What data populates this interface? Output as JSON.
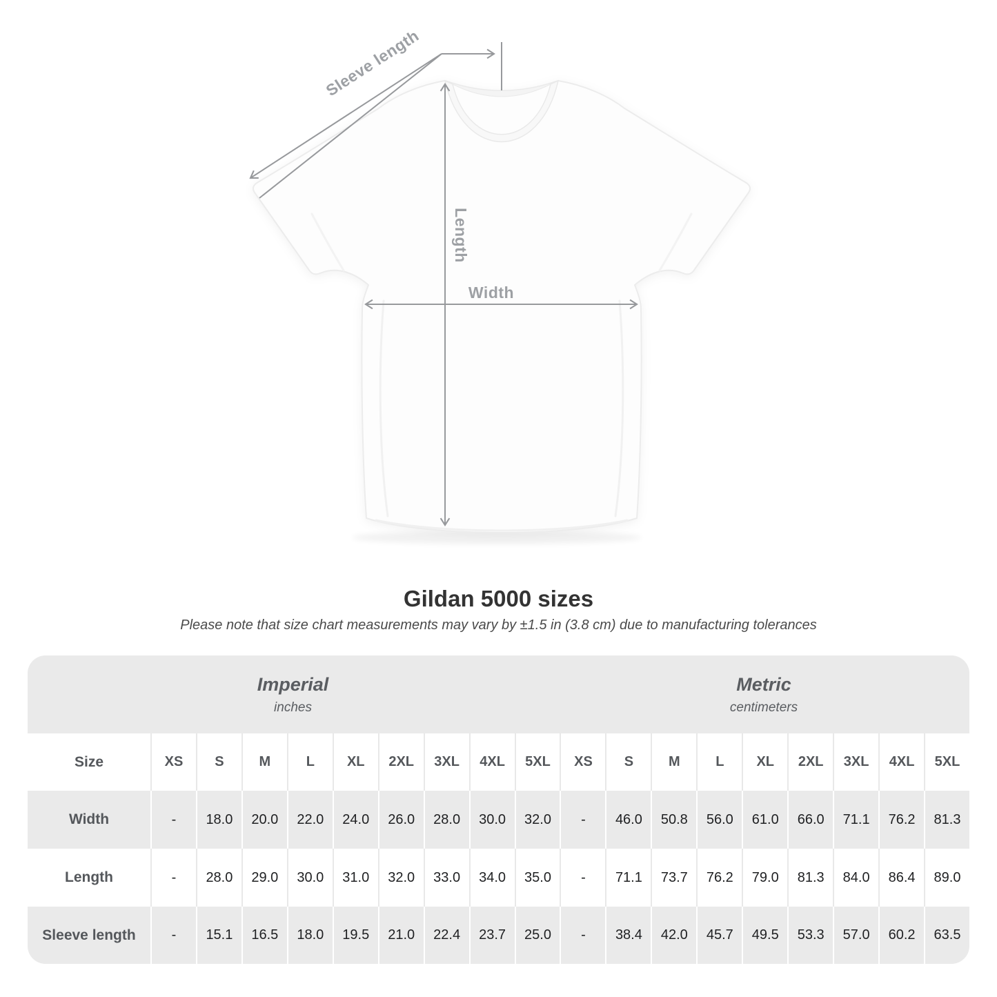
{
  "title": "Gildan 5000 sizes",
  "note": "Please note that size chart measurements may vary by ±1.5 in (3.8 cm) due to manufacturing tolerances",
  "figure": {
    "labels": {
      "sleeve": "Sleeve length",
      "length": "Length",
      "width": "Width"
    }
  },
  "colors": {
    "measurement_line": "#97999c",
    "measurement_label": "#9da0a4",
    "table_band_bg": "#eaeaea",
    "table_header_text": "#54575b",
    "table_value_text": "#1f2022",
    "title_text": "#333333"
  },
  "chart_data": {
    "type": "table",
    "title": "Gildan 5000 sizes",
    "size_header": "Size",
    "sizes": [
      "XS",
      "S",
      "M",
      "L",
      "XL",
      "2XL",
      "3XL",
      "4XL",
      "5XL"
    ],
    "unit_groups": [
      {
        "label": "Imperial",
        "unit": "inches"
      },
      {
        "label": "Metric",
        "unit": "centimeters"
      }
    ],
    "rows": [
      {
        "label": "Width",
        "imperial": [
          "-",
          "18.0",
          "20.0",
          "22.0",
          "24.0",
          "26.0",
          "28.0",
          "30.0",
          "32.0"
        ],
        "metric": [
          "-",
          "46.0",
          "50.8",
          "56.0",
          "61.0",
          "66.0",
          "71.1",
          "76.2",
          "81.3"
        ]
      },
      {
        "label": "Length",
        "imperial": [
          "-",
          "28.0",
          "29.0",
          "30.0",
          "31.0",
          "32.0",
          "33.0",
          "34.0",
          "35.0"
        ],
        "metric": [
          "-",
          "71.1",
          "73.7",
          "76.2",
          "79.0",
          "81.3",
          "84.0",
          "86.4",
          "89.0"
        ]
      },
      {
        "label": "Sleeve length",
        "imperial": [
          "-",
          "15.1",
          "16.5",
          "18.0",
          "19.5",
          "21.0",
          "22.4",
          "23.7",
          "25.0"
        ],
        "metric": [
          "-",
          "38.4",
          "42.0",
          "45.7",
          "49.5",
          "53.3",
          "57.0",
          "60.2",
          "63.5"
        ]
      }
    ]
  }
}
